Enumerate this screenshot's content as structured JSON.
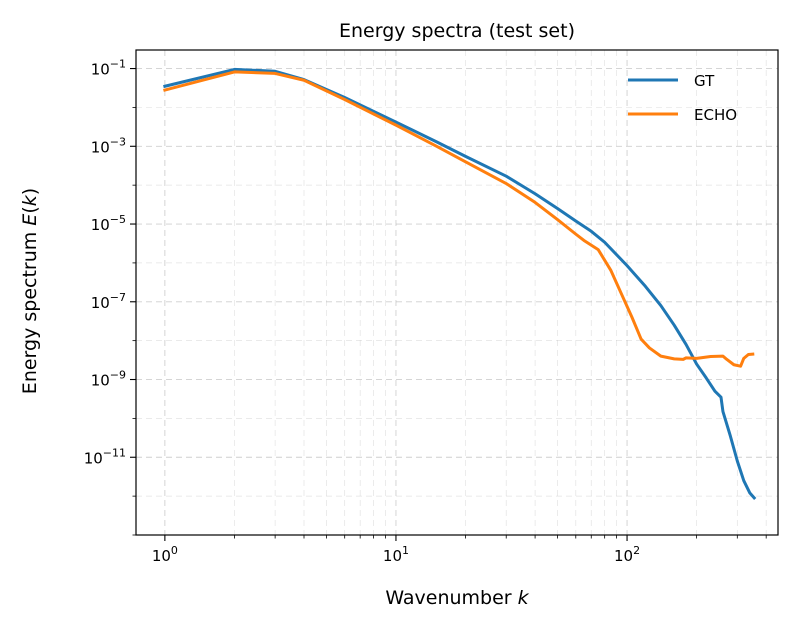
{
  "chart_data": {
    "type": "line",
    "title": "Energy spectra (test set)",
    "xlabel": "Wavenumber k",
    "xlabel_text": "Wavenumber ",
    "xlabel_var": "k",
    "ylabel": "Energy spectrum E(k)",
    "ylabel_text": "Energy spectrum ",
    "ylabel_func": "E(k)",
    "xscale": "log",
    "yscale": "log",
    "xlim": [
      0.75,
      450
    ],
    "ylim": [
      1e-13,
      0.3
    ],
    "grid": true,
    "legend_position": "top-right",
    "x_ticks": [
      {
        "value": 1,
        "base": "10",
        "exp": "0"
      },
      {
        "value": 10,
        "base": "10",
        "exp": "1"
      },
      {
        "value": 100,
        "base": "10",
        "exp": "2"
      }
    ],
    "y_ticks": [
      {
        "value": 0.1,
        "base": "10",
        "exp": "−1"
      },
      {
        "value": 0.001,
        "base": "10",
        "exp": "−3"
      },
      {
        "value": 1e-05,
        "base": "10",
        "exp": "−5"
      },
      {
        "value": 1e-07,
        "base": "10",
        "exp": "−7"
      },
      {
        "value": 1e-09,
        "base": "10",
        "exp": "−9"
      },
      {
        "value": 1e-11,
        "base": "10",
        "exp": "−11"
      }
    ],
    "series": [
      {
        "name": "GT",
        "color": "#1f77b4",
        "points": [
          [
            1,
            0.035
          ],
          [
            2,
            0.095
          ],
          [
            3,
            0.085
          ],
          [
            4,
            0.052
          ],
          [
            6,
            0.018
          ],
          [
            10,
            0.0042
          ],
          [
            15,
            0.0013
          ],
          [
            20,
            0.00055
          ],
          [
            30,
            0.00017
          ],
          [
            40,
            6e-05
          ],
          [
            50,
            2.5e-05
          ],
          [
            60,
            1.2e-05
          ],
          [
            70,
            6.5e-06
          ],
          [
            80,
            3.4e-06
          ],
          [
            100,
            8.5e-07
          ],
          [
            120,
            2.5e-07
          ],
          [
            140,
            8e-08
          ],
          [
            160,
            2.5e-08
          ],
          [
            180,
            8e-09
          ],
          [
            200,
            2.5e-09
          ],
          [
            220,
            1.1e-09
          ],
          [
            240,
            5e-10
          ],
          [
            255,
            3.5e-10
          ],
          [
            260,
            1.5e-10
          ],
          [
            280,
            3.5e-11
          ],
          [
            300,
            8e-12
          ],
          [
            320,
            2.5e-12
          ],
          [
            340,
            1.2e-12
          ],
          [
            355,
            9e-13
          ]
        ]
      },
      {
        "name": "ECHO",
        "color": "#ff7f0e",
        "points": [
          [
            1,
            0.028
          ],
          [
            2,
            0.082
          ],
          [
            3,
            0.075
          ],
          [
            4,
            0.05
          ],
          [
            6,
            0.016
          ],
          [
            10,
            0.0035
          ],
          [
            15,
            0.001
          ],
          [
            20,
            0.0004
          ],
          [
            30,
            0.00011
          ],
          [
            40,
            3.6e-05
          ],
          [
            50,
            1.3e-05
          ],
          [
            60,
            5.5e-06
          ],
          [
            65,
            3.8e-06
          ],
          [
            75,
            2.2e-06
          ],
          [
            85,
            6.5e-07
          ],
          [
            95,
            1.5e-07
          ],
          [
            105,
            4e-08
          ],
          [
            115,
            1.1e-08
          ],
          [
            125,
            6.5e-09
          ],
          [
            140,
            4e-09
          ],
          [
            160,
            3.4e-09
          ],
          [
            175,
            3.3e-09
          ],
          [
            180,
            3.6e-09
          ],
          [
            200,
            3.5e-09
          ],
          [
            230,
            3.9e-09
          ],
          [
            260,
            4e-09
          ],
          [
            270,
            3.3e-09
          ],
          [
            290,
            2.4e-09
          ],
          [
            310,
            2.2e-09
          ],
          [
            320,
            3.5e-09
          ],
          [
            335,
            4.4e-09
          ],
          [
            350,
            4.5e-09
          ]
        ]
      }
    ]
  }
}
